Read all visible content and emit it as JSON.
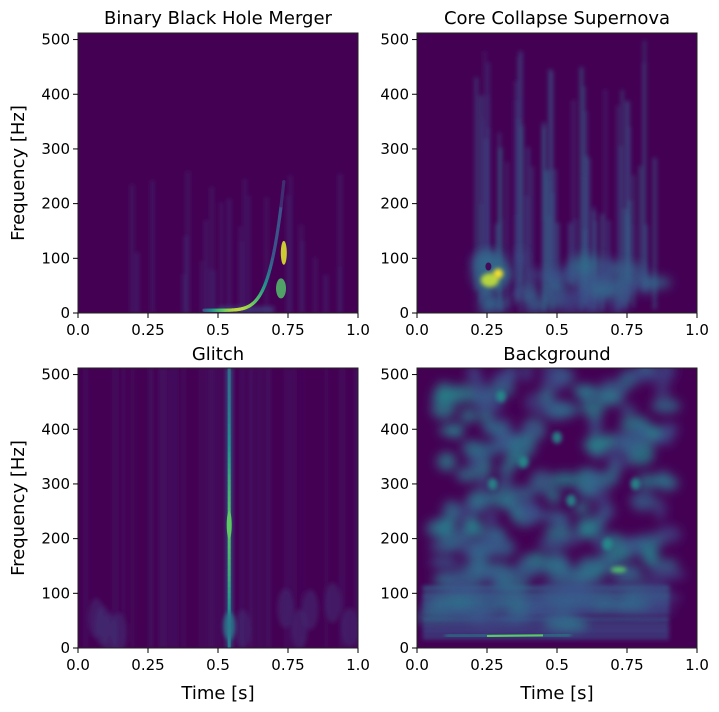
{
  "chart_data": [
    {
      "type": "heatmap",
      "title": "Binary Black Hole Merger",
      "xlabel": "",
      "ylabel": "Frequency [Hz]",
      "xlim": [
        0,
        1
      ],
      "ylim": [
        0,
        512
      ],
      "xticks": [
        "0.0",
        "0.25",
        "0.5",
        "0.75",
        "1.0"
      ],
      "yticks": [
        "0",
        "100",
        "200",
        "300",
        "400",
        "500"
      ],
      "colormap": "viridis",
      "features": [
        {
          "kind": "chirp",
          "t_start": 0.45,
          "t_end": 0.735,
          "f_start": 5,
          "f_end": 240,
          "peak_intensity": 0.9
        }
      ]
    },
    {
      "type": "heatmap",
      "title": "Core Collapse Supernova",
      "xlabel": "",
      "ylabel": "",
      "xlim": [
        0,
        1
      ],
      "ylim": [
        0,
        512
      ],
      "xticks": [
        "0.0",
        "0.25",
        "0.5",
        "0.75",
        "1.0"
      ],
      "yticks": [
        "0",
        "100",
        "200",
        "300",
        "400",
        "500"
      ],
      "colormap": "viridis",
      "features": [
        {
          "kind": "blob",
          "t": 0.27,
          "f": 60,
          "intensity": 1.0
        },
        {
          "kind": "streaks",
          "t_range": [
            0.2,
            0.85
          ],
          "intensity": 0.3
        }
      ]
    },
    {
      "type": "heatmap",
      "title": "Glitch",
      "xlabel": "Time [s]",
      "ylabel": "Frequency [Hz]",
      "xlim": [
        0,
        1
      ],
      "ylim": [
        0,
        512
      ],
      "xticks": [
        "0.0",
        "0.25",
        "0.5",
        "0.75",
        "1.0"
      ],
      "yticks": [
        "0",
        "100",
        "200",
        "300",
        "400",
        "500"
      ],
      "colormap": "viridis",
      "features": [
        {
          "kind": "vertical-line",
          "t": 0.54,
          "f_range": [
            0,
            512
          ],
          "peak_f": 220,
          "intensity": 0.7
        }
      ]
    },
    {
      "type": "heatmap",
      "title": "Background",
      "xlabel": "Time [s]",
      "ylabel": "",
      "xlim": [
        0,
        1
      ],
      "ylim": [
        0,
        512
      ],
      "xticks": [
        "0.0",
        "0.25",
        "0.5",
        "0.75",
        "1.0"
      ],
      "yticks": [
        "0",
        "100",
        "200",
        "300",
        "400",
        "500"
      ],
      "colormap": "viridis",
      "features": [
        {
          "kind": "noise-blobs",
          "t_range": [
            0.1,
            0.9
          ],
          "f_range": [
            20,
            512
          ],
          "intensity": 0.45
        },
        {
          "kind": "horizontal-line",
          "t_range": [
            0.1,
            0.55
          ],
          "f": 22,
          "intensity": 0.75
        },
        {
          "kind": "blob",
          "t": 0.72,
          "f": 143,
          "intensity": 0.7
        }
      ]
    }
  ]
}
